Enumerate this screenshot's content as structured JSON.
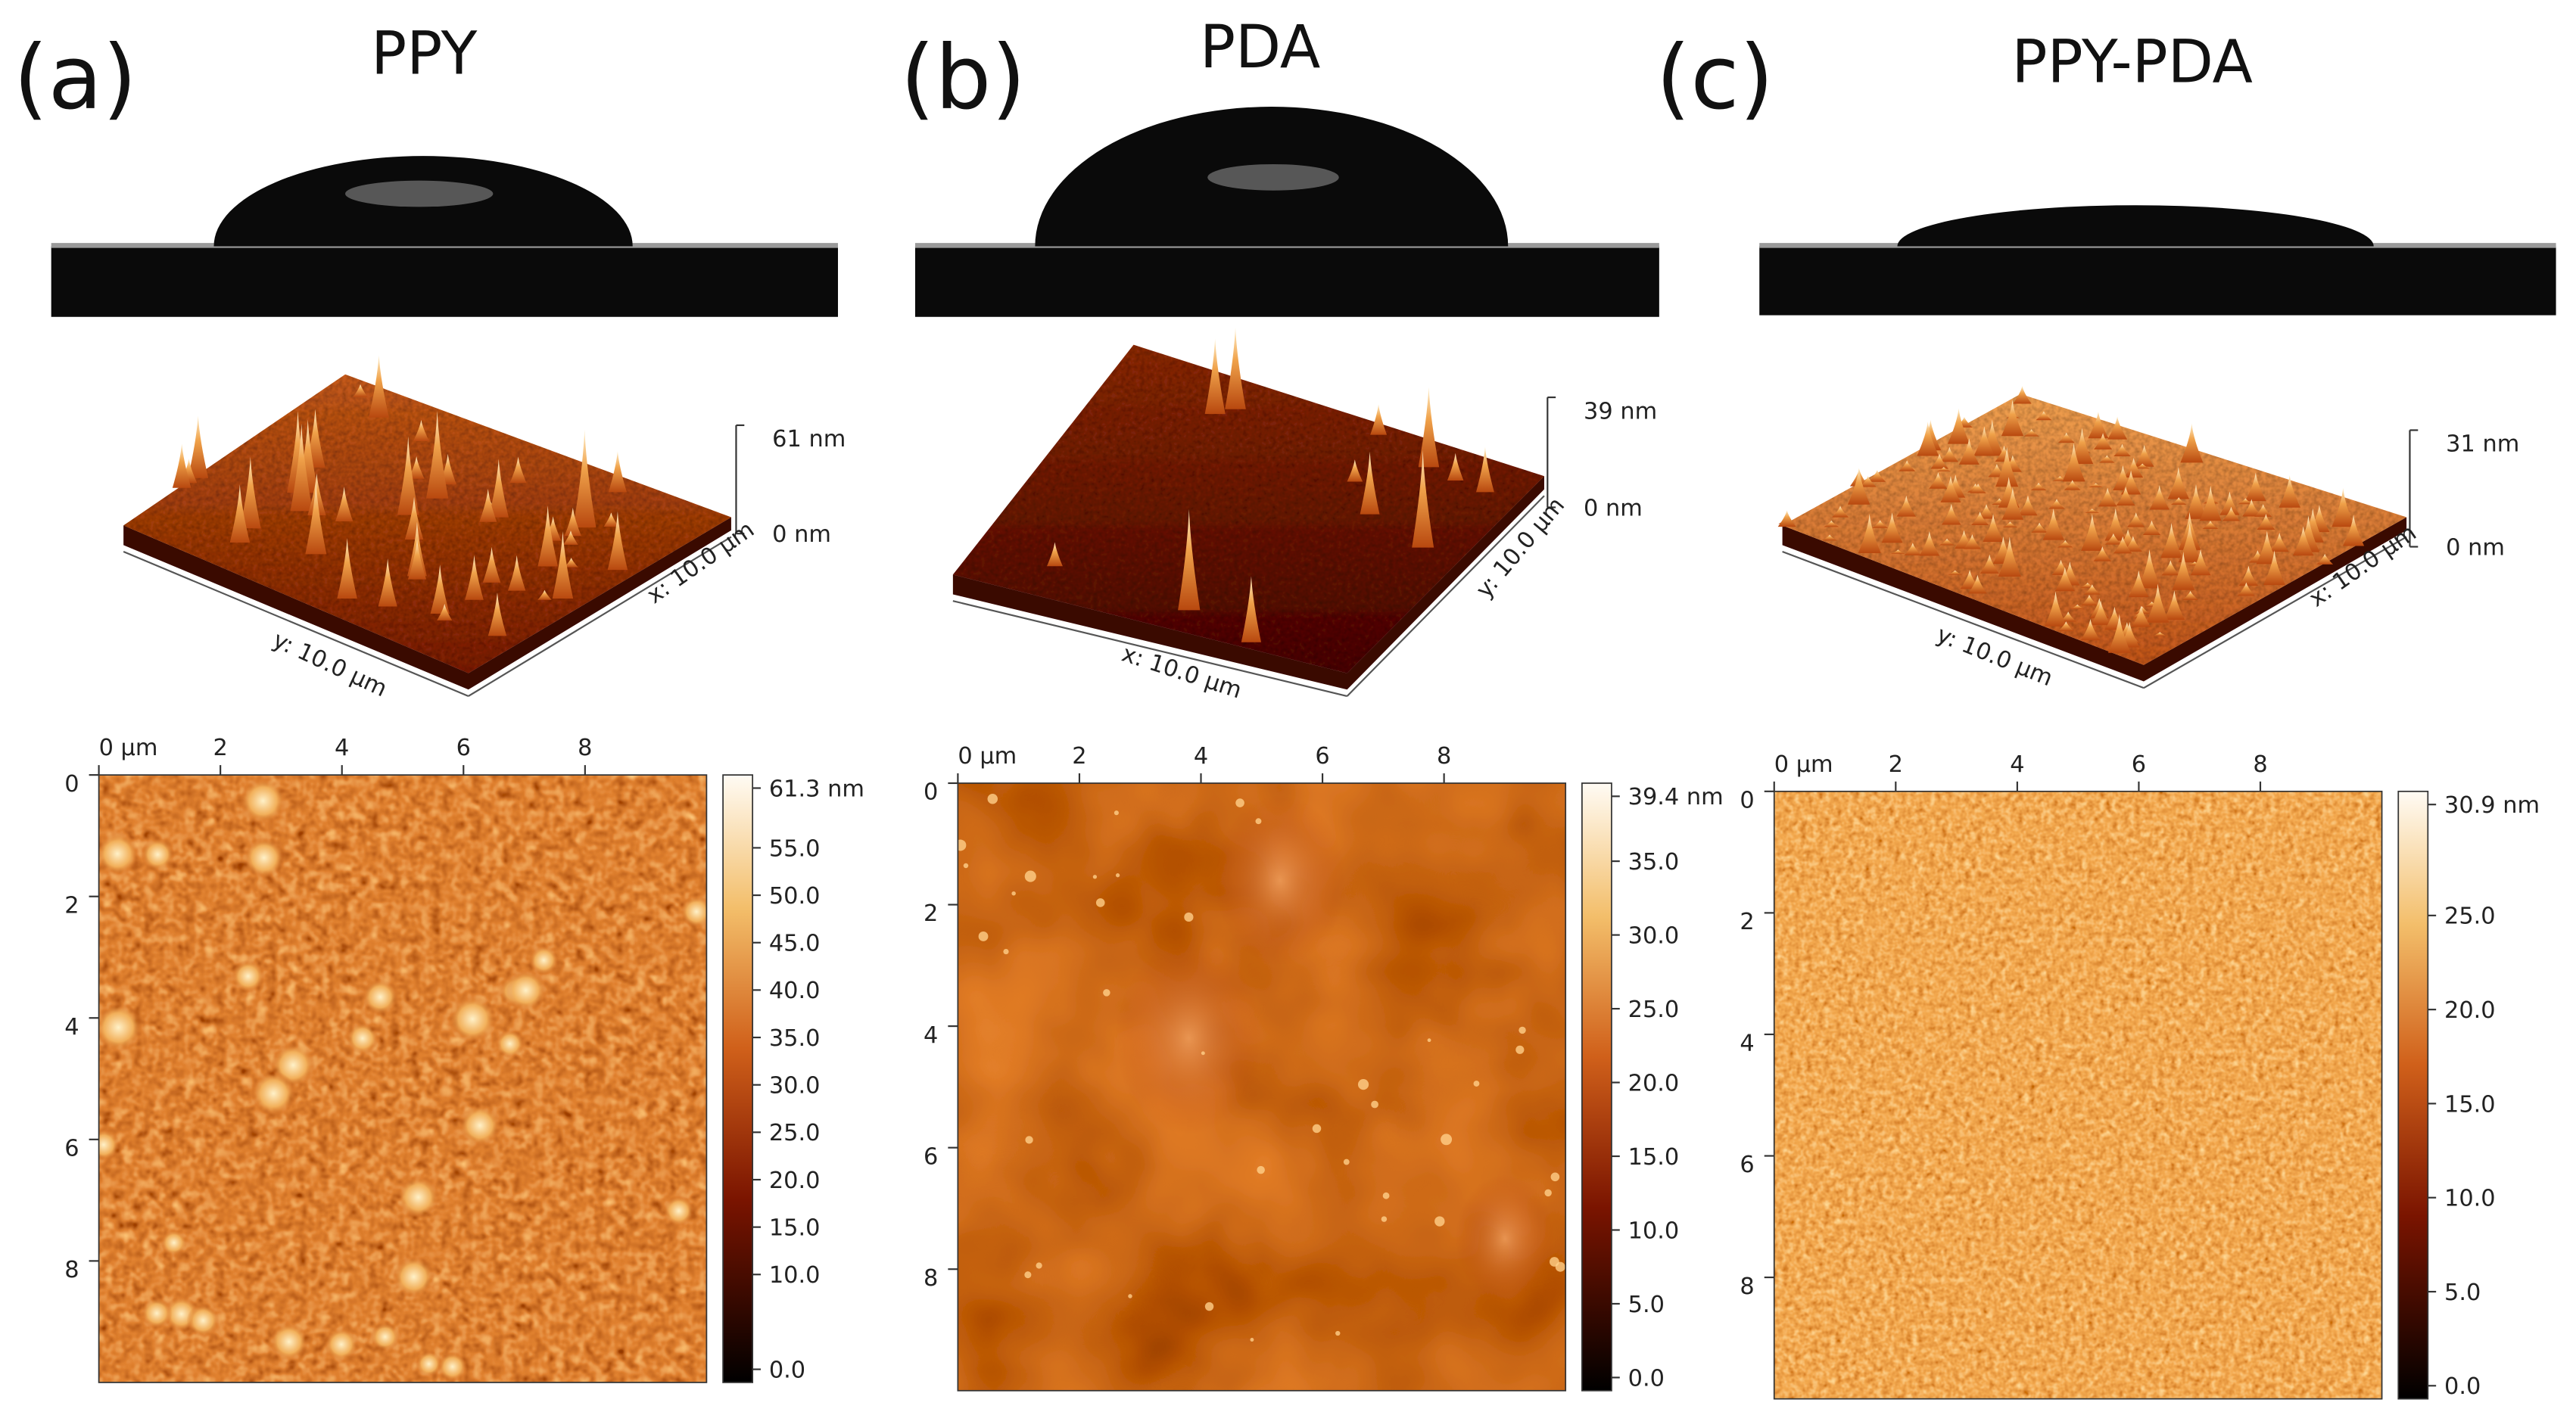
{
  "panels": [
    {
      "label": "(a)",
      "title": "PPY",
      "surface_3d": {
        "z_top_label": "61 nm",
        "z_bottom_label": "0 nm",
        "front_left_axis_label": "y: 10.0 µm",
        "front_right_axis_label": "x: 10.0 µm"
      },
      "height_map": {
        "range": [
          0,
          10
        ],
        "x_ticks": [
          {
            "value": 0,
            "label": "0 µm"
          },
          2,
          4,
          6,
          8
        ],
        "y_ticks": [
          0,
          2,
          4,
          6,
          8
        ],
        "colorbar_ticks": [
          {
            "value": 61.3,
            "label": "61.3 nm"
          },
          {
            "value": 55,
            "label": "55.0"
          },
          {
            "value": 50,
            "label": "50.0"
          },
          {
            "value": 45,
            "label": "45.0"
          },
          {
            "value": 40,
            "label": "40.0"
          },
          {
            "value": 35,
            "label": "35.0"
          },
          {
            "value": 30,
            "label": "30.0"
          },
          {
            "value": 25,
            "label": "25.0"
          },
          {
            "value": 20,
            "label": "20.0"
          },
          {
            "value": 15,
            "label": "15.0"
          },
          {
            "value": 10,
            "label": "10.0"
          },
          {
            "value": 0,
            "label": "0.0"
          }
        ]
      }
    },
    {
      "label": "(b)",
      "title": "PDA",
      "surface_3d": {
        "z_top_label": "39 nm",
        "z_bottom_label": "0 nm",
        "front_left_axis_label": "x: 10.0 µm",
        "front_right_axis_label": "y: 10.0 µm"
      },
      "height_map": {
        "range": [
          0,
          10
        ],
        "x_ticks": [
          {
            "value": 0,
            "label": "0 µm"
          },
          2,
          4,
          6,
          8
        ],
        "y_ticks": [
          0,
          2,
          4,
          6,
          8
        ],
        "colorbar_ticks": [
          {
            "value": 39.4,
            "label": "39.4 nm"
          },
          {
            "value": 35,
            "label": "35.0"
          },
          {
            "value": 30,
            "label": "30.0"
          },
          {
            "value": 25,
            "label": "25.0"
          },
          {
            "value": 20,
            "label": "20.0"
          },
          {
            "value": 15,
            "label": "15.0"
          },
          {
            "value": 10,
            "label": "10.0"
          },
          {
            "value": 5,
            "label": "5.0"
          },
          {
            "value": 0,
            "label": "0.0"
          }
        ]
      }
    },
    {
      "label": "(c)",
      "title": "PPY-PDA",
      "surface_3d": {
        "z_top_label": "31 nm",
        "z_bottom_label": "0 nm",
        "front_left_axis_label": "y: 10.0 µm",
        "front_right_axis_label": "x: 10.0 µm"
      },
      "height_map": {
        "range": [
          0,
          10
        ],
        "x_ticks": [
          {
            "value": 0,
            "label": "0 µm"
          },
          2,
          4,
          6,
          8
        ],
        "y_ticks": [
          0,
          2,
          4,
          6,
          8
        ],
        "colorbar_ticks": [
          {
            "value": 30.9,
            "label": "30.9 nm"
          },
          {
            "value": 25,
            "label": "25.0"
          },
          {
            "value": 20,
            "label": "20.0"
          },
          {
            "value": 15,
            "label": "15.0"
          },
          {
            "value": 10,
            "label": "10.0"
          },
          {
            "value": 5,
            "label": "5.0"
          },
          {
            "value": 0,
            "label": "0.0"
          }
        ]
      }
    }
  ]
}
